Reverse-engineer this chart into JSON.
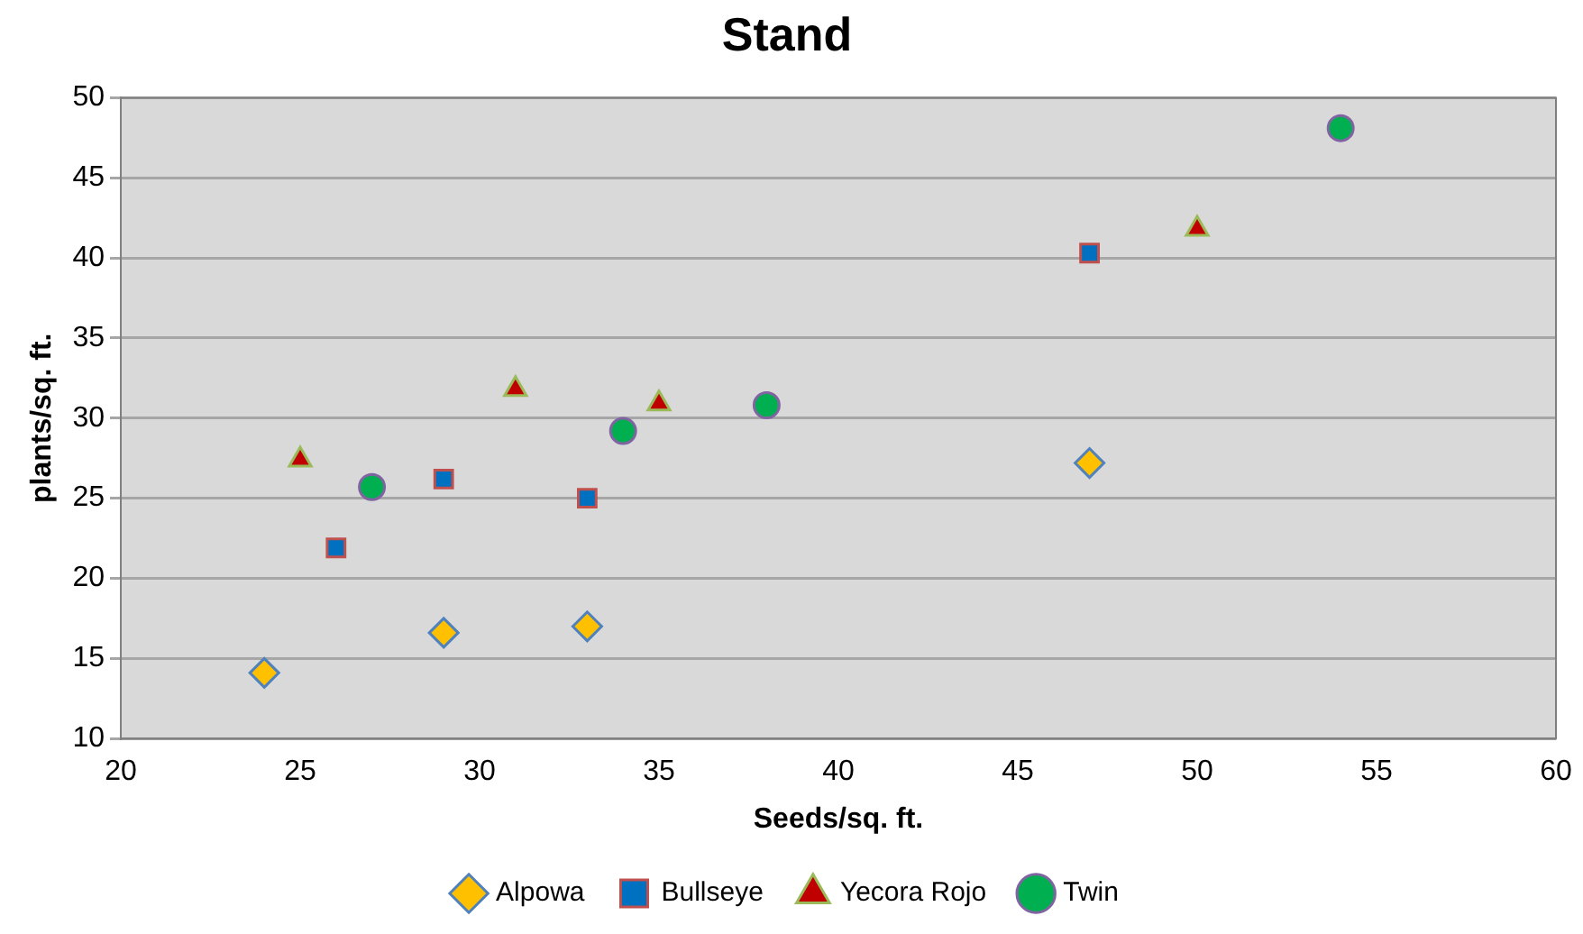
{
  "chart_data": {
    "type": "scatter",
    "title": "Stand",
    "xlabel": "Seeds/sq. ft.",
    "ylabel": "plants/sq. ft.",
    "xlim": [
      20,
      60
    ],
    "xticks": [
      20,
      25,
      30,
      35,
      40,
      45,
      50,
      55,
      60
    ],
    "ylim": [
      10,
      50
    ],
    "yticks": [
      10,
      15,
      20,
      25,
      30,
      35,
      40,
      45,
      50
    ],
    "grid": "y",
    "legend": "bottom",
    "series": [
      {
        "name": "Alpowa",
        "color": "#ffc000",
        "marker": "diamond",
        "x": [
          24,
          29,
          33,
          47
        ],
        "values": [
          14.1,
          16.6,
          17,
          27.2
        ]
      },
      {
        "name": "Bullseye",
        "color": "#0070c0",
        "marker": "square",
        "x": [
          26,
          29,
          33,
          47
        ],
        "values": [
          21.9,
          26.2,
          25,
          40.3
        ]
      },
      {
        "name": "Yecora Rojo",
        "color": "#c00000",
        "marker": "triangle",
        "x": [
          25,
          31,
          35,
          50
        ],
        "values": [
          27.4,
          31.8,
          30.9,
          41.8
        ]
      },
      {
        "name": "Twin",
        "color": "#00b050",
        "marker": "circle",
        "x": [
          27,
          34,
          38,
          54
        ],
        "values": [
          25.7,
          29.2,
          30.8,
          48.1
        ]
      }
    ]
  }
}
